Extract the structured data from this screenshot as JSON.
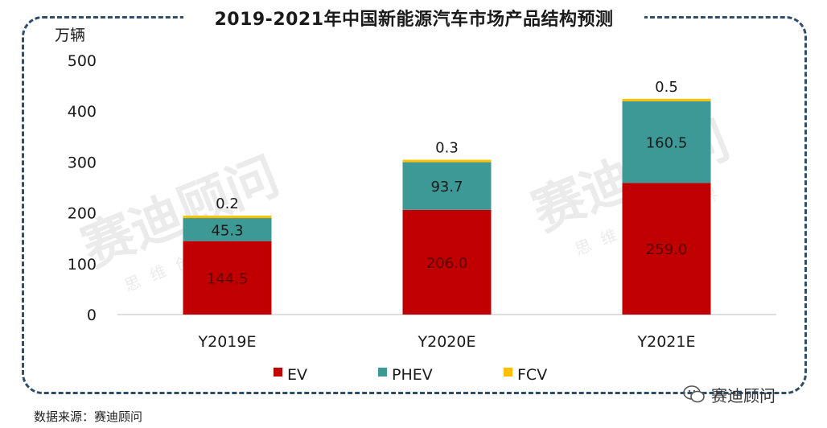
{
  "title": "2019-2021年中国新能源汽车市场产品结构预测",
  "source": "数据来源：赛迪顾问",
  "brand": "赛迪顾问",
  "watermark": {
    "main": "赛迪顾问",
    "sub": "思维创造世界"
  },
  "chart_data": {
    "type": "bar",
    "stacked": true,
    "title": "2019-2021年中国新能源汽车市场产品结构预测",
    "ylabel": "万辆",
    "xlabel": "",
    "ylim": [
      0,
      500
    ],
    "yticks": [
      0,
      100,
      200,
      300,
      400,
      500
    ],
    "categories": [
      "Y2019E",
      "Y2020E",
      "Y2021E"
    ],
    "series": [
      {
        "name": "EV",
        "color": "#c00000",
        "values": [
          144.5,
          206.0,
          259.0
        ],
        "labels": [
          "144.5",
          "206.0",
          "259.0"
        ]
      },
      {
        "name": "PHEV",
        "color": "#3d9995",
        "values": [
          45.3,
          93.7,
          160.5
        ],
        "labels": [
          "45.3",
          "93.7",
          "160.5"
        ]
      },
      {
        "name": "FCV",
        "color": "#ffc000",
        "values": [
          0.2,
          0.3,
          0.5
        ],
        "labels": [
          "0.2",
          "0.3",
          "0.5"
        ]
      }
    ],
    "legend_position": "bottom",
    "grid": false
  }
}
